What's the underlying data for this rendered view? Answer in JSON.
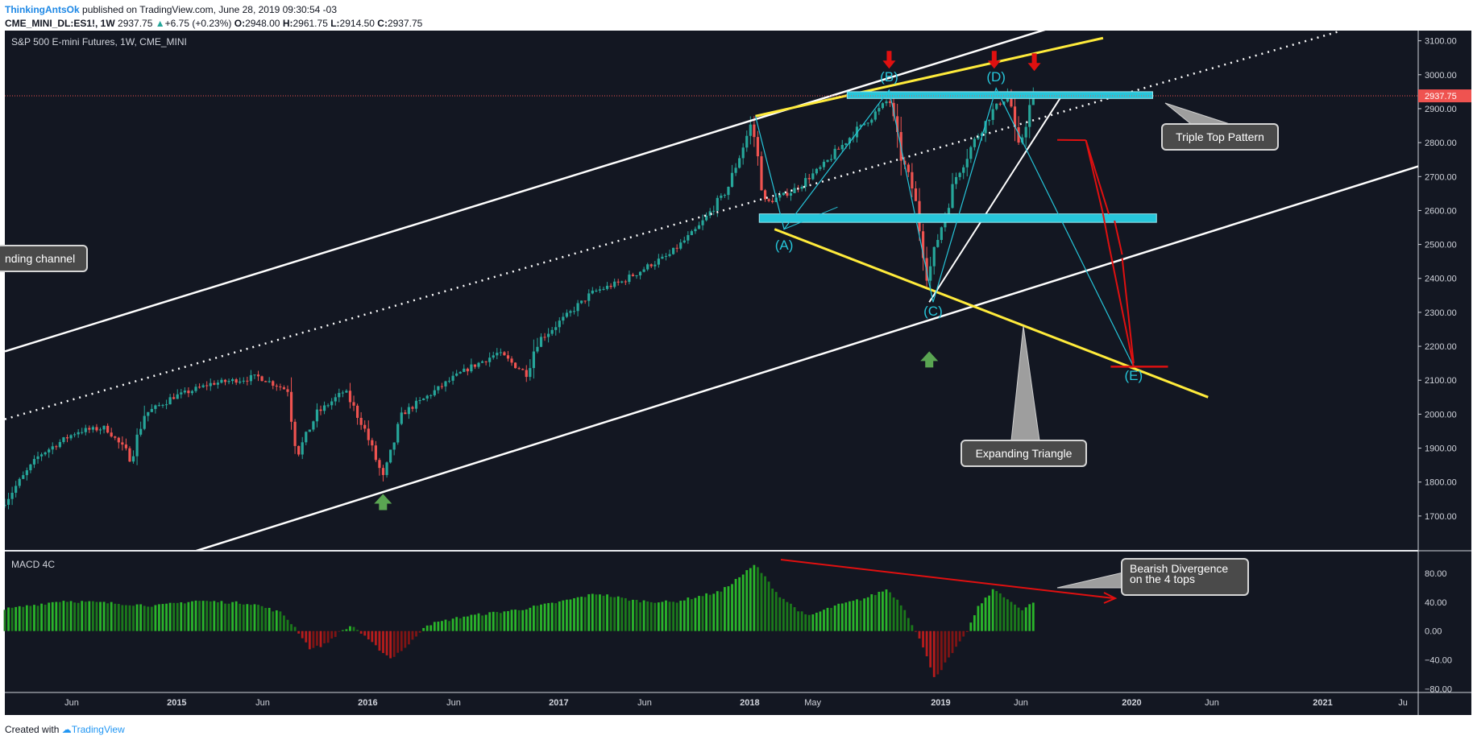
{
  "header": {
    "author": "ThinkingAntsOk",
    "published": "published on TradingView.com, June 28, 2019 09:30:54 -03",
    "symbol": "CME_MINI_DL:ES1!, 1W",
    "last": "2937.75",
    "change_arrow": "▲",
    "change": "+6.75 (+0.23%)",
    "o_label": "O:",
    "o": "2948.00",
    "h_label": "H:",
    "h": "2961.75",
    "l_label": "L:",
    "l": "2914.50",
    "c_label": "C:",
    "c": "2937.75"
  },
  "footer": {
    "created": "Created with",
    "brand": "TradingView"
  },
  "colors": {
    "background": "#131722",
    "up": "#26a69a",
    "down": "#ef5350",
    "trend": "#ffffff",
    "triangle": "#ffeb3b",
    "zone": "#26c6da",
    "arrow_red": "#e01010",
    "arrow_green": "#5aa552",
    "macd_up": "#2ab52a",
    "macd_down": "#b71c1c"
  },
  "chart_data": [
    {
      "type": "candlestick",
      "title": "S&P 500 E-mini Futures, 1W, CME_MINI",
      "ylim": [
        1600,
        3130
      ],
      "y_ticks": [
        1700,
        1800,
        1900,
        2000,
        2100,
        2200,
        2300,
        2400,
        2500,
        2600,
        2700,
        2800,
        2900,
        3000,
        3100
      ],
      "y_tick_labels": [
        "1700.00",
        "1800.00",
        "1900.00",
        "2000.00",
        "2100.00",
        "2200.00",
        "2300.00",
        "2400.00",
        "2500.00",
        "2600.00",
        "2700.00",
        "2800.00",
        "2900.00",
        "3000.00",
        "3100.00"
      ],
      "last_price_label": "2937.75",
      "last_price": 2937.75,
      "x_ticks": [
        "Jun",
        "2015",
        "Jun",
        "2016",
        "Jun",
        "2017",
        "Jun",
        "2018",
        "May",
        "2019",
        "Jun",
        "2020",
        "Jun",
        "2021",
        "Ju"
      ],
      "x_tick_positions": [
        2014.45,
        2015.0,
        2015.45,
        2016.0,
        2016.45,
        2017.0,
        2017.45,
        2018.0,
        2018.33,
        2019.0,
        2019.42,
        2020.0,
        2020.42,
        2021.0,
        2021.42
      ],
      "xlim": [
        2014.1,
        2021.5
      ],
      "price_path": [
        [
          2014.1,
          1730
        ],
        [
          2014.3,
          1880
        ],
        [
          2014.5,
          1950
        ],
        [
          2014.65,
          1960
        ],
        [
          2014.78,
          1870
        ],
        [
          2014.85,
          2000
        ],
        [
          2015.0,
          2050
        ],
        [
          2015.2,
          2090
        ],
        [
          2015.45,
          2110
        ],
        [
          2015.6,
          2070
        ],
        [
          2015.65,
          1880
        ],
        [
          2015.75,
          2000
        ],
        [
          2015.9,
          2070
        ],
        [
          2016.0,
          1960
        ],
        [
          2016.1,
          1810
        ],
        [
          2016.2,
          2000
        ],
        [
          2016.35,
          2060
        ],
        [
          2016.5,
          2120
        ],
        [
          2016.7,
          2180
        ],
        [
          2016.85,
          2120
        ],
        [
          2016.9,
          2210
        ],
        [
          2017.0,
          2260
        ],
        [
          2017.2,
          2360
        ],
        [
          2017.35,
          2390
        ],
        [
          2017.5,
          2440
        ],
        [
          2017.6,
          2470
        ],
        [
          2017.75,
          2550
        ],
        [
          2017.9,
          2660
        ],
        [
          2018.03,
          2860
        ],
        [
          2018.1,
          2620
        ],
        [
          2018.25,
          2660
        ],
        [
          2018.4,
          2730
        ],
        [
          2018.55,
          2820
        ],
        [
          2018.7,
          2900
        ],
        [
          2018.75,
          2930
        ],
        [
          2018.8,
          2780
        ],
        [
          2018.88,
          2650
        ],
        [
          2018.95,
          2400
        ],
        [
          2019.0,
          2510
        ],
        [
          2019.1,
          2700
        ],
        [
          2019.2,
          2810
        ],
        [
          2019.3,
          2900
        ],
        [
          2019.38,
          2945
        ],
        [
          2019.42,
          2760
        ],
        [
          2019.5,
          2938
        ]
      ],
      "annotations": {
        "labels": [
          {
            "text": "(A)",
            "x": 2018.18,
            "y": 2485
          },
          {
            "text": "(B)",
            "x": 2018.73,
            "y": 2980
          },
          {
            "text": "(C)",
            "x": 2018.96,
            "y": 2290
          },
          {
            "text": "(D)",
            "x": 2019.29,
            "y": 2980
          },
          {
            "text": "(E)",
            "x": 2020.01,
            "y": 2100
          }
        ],
        "callouts": [
          {
            "text": "Triple Top Pattern"
          },
          {
            "text": "Expanding Triangle"
          },
          {
            "text": "nding channel"
          }
        ]
      }
    },
    {
      "type": "bar",
      "title": "MACD 4C",
      "ylim": [
        -85,
        110
      ],
      "y_ticks": [
        80,
        40,
        0,
        -40,
        -80
      ],
      "y_tick_labels": [
        "80.00",
        "40.00",
        "0.00",
        "−40.00",
        "−80.00"
      ],
      "path": [
        [
          2014.1,
          30
        ],
        [
          2014.4,
          42
        ],
        [
          2014.7,
          38
        ],
        [
          2014.9,
          35
        ],
        [
          2015.1,
          42
        ],
        [
          2015.4,
          38
        ],
        [
          2015.55,
          25
        ],
        [
          2015.62,
          5
        ],
        [
          2015.7,
          -25
        ],
        [
          2015.78,
          -18
        ],
        [
          2015.85,
          -2
        ],
        [
          2015.92,
          8
        ],
        [
          2016.0,
          -12
        ],
        [
          2016.12,
          -38
        ],
        [
          2016.22,
          -18
        ],
        [
          2016.3,
          8
        ],
        [
          2016.5,
          20
        ],
        [
          2016.8,
          30
        ],
        [
          2017.0,
          40
        ],
        [
          2017.2,
          52
        ],
        [
          2017.4,
          42
        ],
        [
          2017.6,
          40
        ],
        [
          2017.85,
          55
        ],
        [
          2018.03,
          92
        ],
        [
          2018.15,
          50
        ],
        [
          2018.3,
          20
        ],
        [
          2018.45,
          35
        ],
        [
          2018.6,
          45
        ],
        [
          2018.72,
          58
        ],
        [
          2018.8,
          35
        ],
        [
          2018.88,
          -5
        ],
        [
          2018.97,
          -65
        ],
        [
          2019.05,
          -35
        ],
        [
          2019.13,
          -5
        ],
        [
          2019.2,
          35
        ],
        [
          2019.28,
          58
        ],
        [
          2019.35,
          45
        ],
        [
          2019.42,
          28
        ],
        [
          2019.5,
          42
        ]
      ],
      "callout": "Bearish Divergence\non the 4 tops"
    }
  ]
}
